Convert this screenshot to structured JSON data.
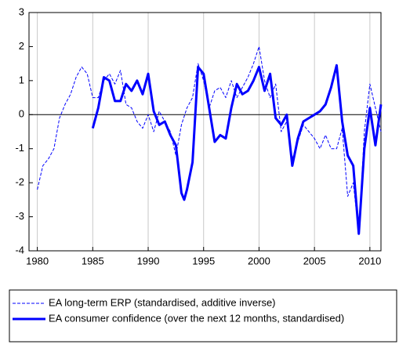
{
  "chart_data": {
    "type": "line",
    "xlim": [
      1979.25,
      2011
    ],
    "xticks": [
      1980,
      1985,
      1990,
      1995,
      2000,
      2005,
      2010
    ],
    "ylim": [
      -4,
      3
    ],
    "yticks": [
      -4,
      -3,
      -2,
      -1,
      0,
      1,
      2,
      3
    ],
    "grid": "x",
    "legend": "bottom",
    "series": [
      {
        "name": "EA long-term ERP (standardised, additive inverse)",
        "color": "#0000ff",
        "dashed": true,
        "width": 1,
        "x": [
          1980,
          1980.5,
          1981,
          1981.5,
          1982,
          1982.5,
          1983,
          1983.5,
          1984,
          1984.5,
          1985,
          1985.5,
          1986,
          1986.5,
          1987,
          1987.5,
          1988,
          1988.5,
          1989,
          1989.5,
          1990,
          1990.5,
          1991,
          1991.5,
          1992,
          1992.5,
          1993,
          1993.5,
          1994,
          1994.5,
          1995,
          1995.5,
          1996,
          1996.5,
          1997,
          1997.5,
          1998,
          1998.5,
          1999,
          1999.5,
          2000,
          2000.5,
          2001,
          2001.5,
          2002,
          2002.5,
          2003,
          2003.5,
          2004,
          2004.5,
          2005,
          2005.5,
          2006,
          2006.5,
          2007,
          2007.5,
          2008,
          2008.5,
          2009,
          2009.5,
          2010,
          2010.5,
          2011
        ],
        "values": [
          -2.2,
          -1.5,
          -1.3,
          -1.0,
          -0.1,
          0.3,
          0.6,
          1.1,
          1.4,
          1.2,
          0.5,
          0.5,
          1.0,
          1.2,
          0.9,
          1.3,
          0.3,
          0.2,
          -0.2,
          -0.4,
          0.0,
          -0.5,
          0.1,
          -0.2,
          -0.5,
          -1.2,
          -0.3,
          0.2,
          0.5,
          1.5,
          1.0,
          0.2,
          0.7,
          0.8,
          0.5,
          1.0,
          0.5,
          0.8,
          1.1,
          1.5,
          2.0,
          1.0,
          0.5,
          0.9,
          -0.5,
          -0.2,
          -1.3,
          -0.8,
          -0.3,
          -0.5,
          -0.7,
          -1.0,
          -0.6,
          -1.0,
          -1.0,
          -0.4,
          -2.4,
          -2.0,
          -3.5,
          -0.5,
          0.9,
          0.2,
          -0.5
        ]
      },
      {
        "name": "EA consumer confidence (over the next 12 months, standardised)",
        "color": "#0000ff",
        "dashed": false,
        "width": 3,
        "x": [
          1985,
          1985.5,
          1986,
          1986.5,
          1987,
          1987.5,
          1988,
          1988.5,
          1989,
          1989.5,
          1990,
          1990.5,
          1991,
          1991.5,
          1992,
          1992.5,
          1993,
          1993.25,
          1993.5,
          1994,
          1994.5,
          1995,
          1995.5,
          1996,
          1996.5,
          1997,
          1997.5,
          1998,
          1998.5,
          1999,
          1999.5,
          2000,
          2000.5,
          2001,
          2001.5,
          2002,
          2002.5,
          2003,
          2003.5,
          2004,
          2004.5,
          2005,
          2005.5,
          2006,
          2006.5,
          2007,
          2007.5,
          2008,
          2008.5,
          2009,
          2009.5,
          2010,
          2010.5,
          2011
        ],
        "values": [
          -0.4,
          0.2,
          1.1,
          1.0,
          0.4,
          0.4,
          0.9,
          0.7,
          1.0,
          0.6,
          1.2,
          0.1,
          -0.3,
          -0.2,
          -0.6,
          -0.9,
          -2.3,
          -2.5,
          -2.2,
          -1.4,
          1.4,
          1.2,
          0.2,
          -0.8,
          -0.6,
          -0.7,
          0.2,
          0.9,
          0.6,
          0.7,
          1.0,
          1.4,
          0.7,
          1.2,
          -0.1,
          -0.3,
          0.0,
          -1.5,
          -0.7,
          -0.2,
          -0.1,
          0.0,
          0.1,
          0.3,
          0.8,
          1.45,
          -0.2,
          -1.2,
          -1.5,
          -3.5,
          -1.0,
          0.2,
          -0.9,
          0.3
        ]
      }
    ]
  }
}
